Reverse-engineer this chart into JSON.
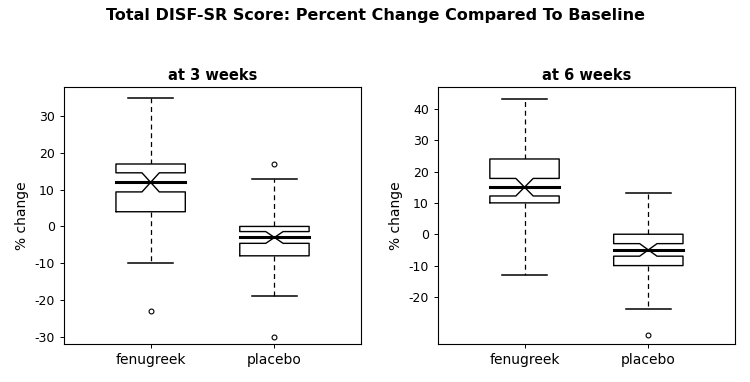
{
  "title": "Total DISF-SR Score: Percent Change Compared To Baseline",
  "panel1_title": "at 3 weeks",
  "panel2_title": "at 6 weeks",
  "ylabel": "% change",
  "panel1": {
    "fenugreek": {
      "whislo": -10,
      "q1": 4,
      "med": 12,
      "q3": 17,
      "whishi": 35,
      "fliers": [
        -23
      ]
    },
    "placebo": {
      "whislo": -19,
      "q1": -8,
      "med": -3,
      "q3": 0,
      "whishi": 13,
      "fliers": [
        17,
        -30
      ]
    }
  },
  "panel2": {
    "fenugreek": {
      "whislo": -13,
      "q1": 10,
      "med": 15,
      "q3": 24,
      "whishi": 43,
      "fliers": []
    },
    "placebo": {
      "whislo": -24,
      "q1": -10,
      "med": -5,
      "q3": 0,
      "whishi": 13,
      "fliers": [
        -32
      ]
    }
  },
  "ylim1": [
    -32,
    38
  ],
  "ylim2": [
    -35,
    47
  ],
  "yticks1": [
    -30,
    -20,
    -10,
    0,
    10,
    20,
    30
  ],
  "yticks2": [
    -20,
    -10,
    0,
    10,
    20,
    30,
    40
  ],
  "background_color": "#ffffff"
}
